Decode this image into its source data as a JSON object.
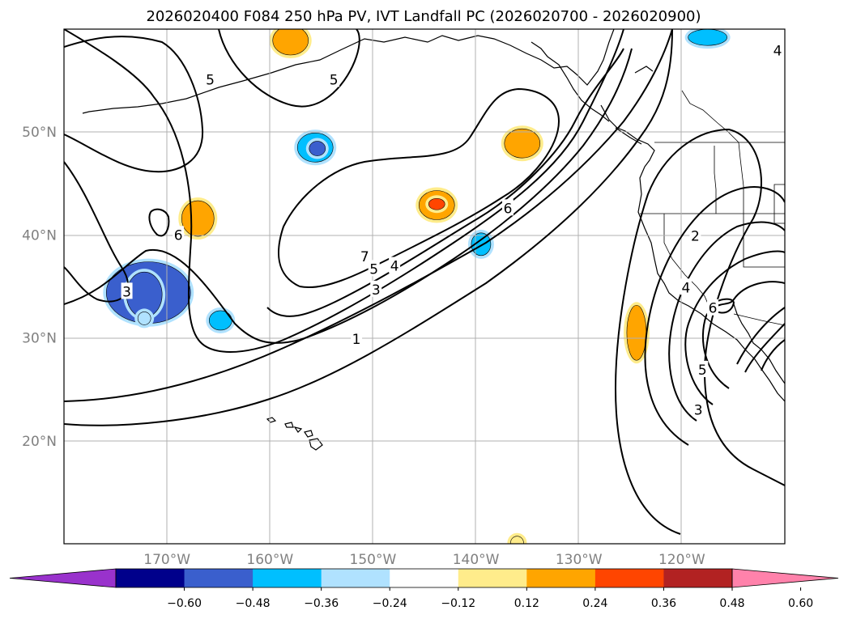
{
  "chart_data": {
    "type": "map-contour",
    "title": "2026020400 F084 250 hPa PV, IVT Landfall PC (2026020700 - 2026020900)",
    "lon_range": [
      -180,
      -110
    ],
    "lat_range": [
      10,
      60
    ],
    "lat_ticks": [
      {
        "value": 50,
        "label": "50°N"
      },
      {
        "value": 40,
        "label": "40°N"
      },
      {
        "value": 30,
        "label": "30°N"
      },
      {
        "value": 20,
        "label": "20°N"
      }
    ],
    "lon_ticks": [
      {
        "value": -170,
        "label": "170°W"
      },
      {
        "value": -160,
        "label": "160°W"
      },
      {
        "value": -150,
        "label": "150°W"
      },
      {
        "value": -140,
        "label": "140°W"
      },
      {
        "value": -130,
        "label": "130°W"
      },
      {
        "value": -120,
        "label": "120°W"
      }
    ],
    "contour_labels": [
      {
        "text": "5",
        "lon": -165.8,
        "lat": 55.1
      },
      {
        "text": "5",
        "lon": -153.8,
        "lat": 55.1
      },
      {
        "text": "6",
        "lon": -168.9,
        "lat": 40.0
      },
      {
        "text": "3",
        "lon": -173.9,
        "lat": 34.5
      },
      {
        "text": "6",
        "lon": -136.9,
        "lat": 42.6
      },
      {
        "text": "7",
        "lon": -150.8,
        "lat": 37.9
      },
      {
        "text": "5",
        "lon": -149.9,
        "lat": 36.7
      },
      {
        "text": "4",
        "lon": -147.9,
        "lat": 37.0
      },
      {
        "text": "3",
        "lon": -149.7,
        "lat": 34.7
      },
      {
        "text": "1",
        "lon": -151.6,
        "lat": 29.9
      },
      {
        "text": "2",
        "lon": -118.7,
        "lat": 39.9
      },
      {
        "text": "4",
        "lon": -119.6,
        "lat": 34.9
      },
      {
        "text": "6",
        "lon": -117.0,
        "lat": 32.9
      },
      {
        "text": "5",
        "lon": -118.0,
        "lat": 26.9
      },
      {
        "text": "3",
        "lon": -118.4,
        "lat": 23.0
      },
      {
        "text": "4",
        "lon": -110.7,
        "lat": 57.9
      }
    ],
    "shaded_anomalies": [
      {
        "lon": -158.0,
        "lat": 58.9,
        "value": 0.3
      },
      {
        "lon": -155.6,
        "lat": 48.5,
        "value": -0.3
      },
      {
        "lon": -155.4,
        "lat": 48.4,
        "value": -0.44
      },
      {
        "lon": -167.0,
        "lat": 41.6,
        "value": 0.3
      },
      {
        "lon": -171.8,
        "lat": 34.4,
        "value": -0.36
      },
      {
        "lon": -172.2,
        "lat": 34.2,
        "value": -0.48
      },
      {
        "lon": -143.8,
        "lat": 42.9,
        "value": 0.3
      },
      {
        "lon": -143.8,
        "lat": 43.0,
        "value": 0.42
      },
      {
        "lon": -135.5,
        "lat": 48.9,
        "value": 0.3
      },
      {
        "lon": -139.5,
        "lat": 39.1,
        "value": -0.3
      },
      {
        "lon": -124.4,
        "lat": 30.5,
        "value": 0.3
      },
      {
        "lon": -117.5,
        "lat": 59.2,
        "value": -0.3
      },
      {
        "lon": -136.0,
        "lat": 10.1,
        "value": 0.18
      },
      {
        "lon": -172.2,
        "lat": 31.9,
        "value": -0.18
      },
      {
        "lon": -164.8,
        "lat": 31.7,
        "value": -0.3
      }
    ],
    "colorbar": {
      "ticks": [
        "−0.60",
        "−0.48",
        "−0.36",
        "−0.24",
        "−0.12",
        "0.12",
        "0.24",
        "0.36",
        "0.48",
        "0.60"
      ],
      "bins": [
        {
          "value": -0.66,
          "color": "#9932cc"
        },
        {
          "value": -0.54,
          "color": "#00008b"
        },
        {
          "value": -0.42,
          "color": "#3a5fcd"
        },
        {
          "value": -0.3,
          "color": "#00bfff"
        },
        {
          "value": -0.18,
          "color": "#b0e2ff"
        },
        {
          "value": 0.0,
          "color": "#ffffff"
        },
        {
          "value": 0.18,
          "color": "#ffec8b"
        },
        {
          "value": 0.3,
          "color": "#ffa500"
        },
        {
          "value": 0.42,
          "color": "#ff4500"
        },
        {
          "value": 0.54,
          "color": "#b22222"
        },
        {
          "value": 0.66,
          "color": "#ff82ab"
        }
      ]
    }
  }
}
